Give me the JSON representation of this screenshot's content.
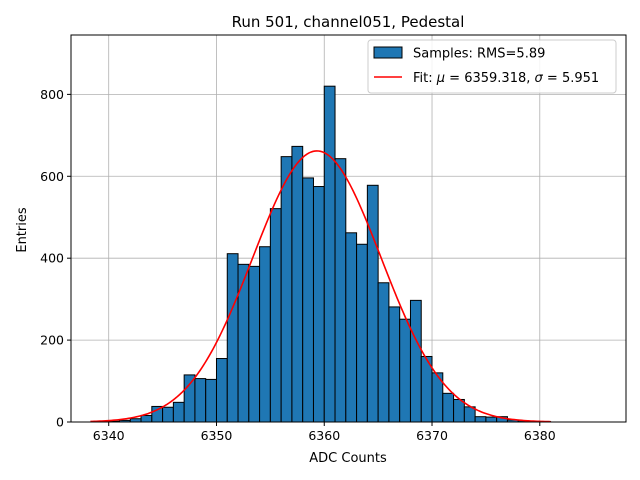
{
  "chart_data": {
    "type": "histogram",
    "title": "Run 501, channel051, Pedestal",
    "xlabel": "ADC Counts",
    "ylabel": "Entries",
    "xlim": [
      6336.5,
      6388
    ],
    "ylim": [
      0,
      945
    ],
    "xticks": [
      6340,
      6350,
      6360,
      6370,
      6380
    ],
    "yticks": [
      0,
      200,
      400,
      600,
      800
    ],
    "grid": true,
    "legend_position": "top-right",
    "histogram": {
      "name": "Samples: RMS=5.89",
      "color": "#1f77b4",
      "bin_width": 1,
      "bin_starts": [
        6339,
        6340,
        6341,
        6342,
        6343,
        6344,
        6345,
        6346,
        6347,
        6348,
        6349,
        6350,
        6351,
        6352,
        6353,
        6354,
        6355,
        6356,
        6357,
        6358,
        6359,
        6360,
        6361,
        6362,
        6363,
        6364,
        6365,
        6366,
        6367,
        6368,
        6369,
        6370,
        6371,
        6372,
        6373,
        6374,
        6375,
        6376,
        6377,
        6378,
        6379,
        6380
      ],
      "counts": [
        1,
        2,
        4,
        8,
        16,
        38,
        36,
        48,
        115,
        106,
        104,
        155,
        411,
        385,
        380,
        428,
        521,
        648,
        673,
        596,
        575,
        820,
        643,
        462,
        434,
        578,
        340,
        281,
        251,
        297,
        160,
        120,
        70,
        55,
        37,
        13,
        12,
        13,
        5,
        3,
        1,
        1
      ]
    },
    "fit": {
      "name_prefix": "Fit: ",
      "mu_value": "6359.318",
      "sigma_value": "5.951",
      "mu": 6359.318,
      "sigma": 5.951,
      "amplitude": 662,
      "x_range": [
        6338.3,
        6381
      ],
      "color": "#ff0000"
    },
    "tick_labels": {
      "x": [
        "6340",
        "6350",
        "6360",
        "6370",
        "6380"
      ],
      "y": [
        "0",
        "200",
        "400",
        "600",
        "800"
      ]
    }
  }
}
